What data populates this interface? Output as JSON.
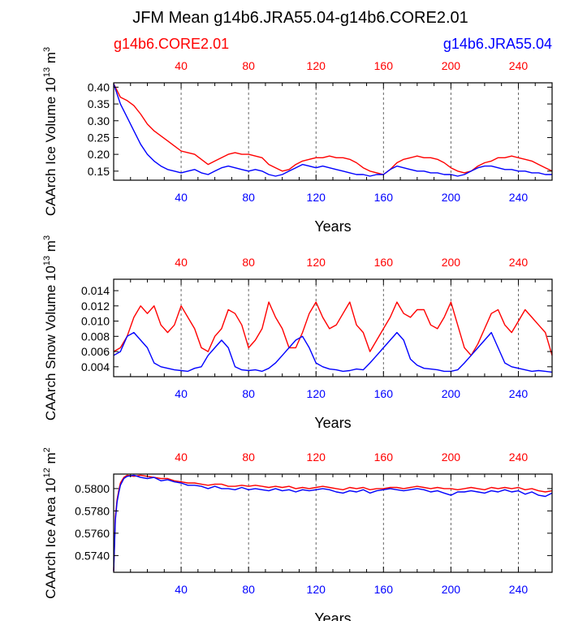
{
  "title": "JFM Mean g14b6.JRA55.04-g14b6.CORE2.01",
  "legend": {
    "left": {
      "label": "g14b6.CORE2.01",
      "color": "#ff0000"
    },
    "right": {
      "label": "g14b6.JRA55.04",
      "color": "#0000ff"
    }
  },
  "colors": {
    "core": "#ff0000",
    "jra": "#0000ff",
    "frame": "#000000",
    "grid": "#555555"
  },
  "chart_data": [
    {
      "type": "line",
      "id": "volume",
      "ylabel_main": "CAArch Ice Volume 10",
      "ylabel_exp": "13",
      "ylabel_unit": "m",
      "ylabel_unit_exp": "3",
      "xlabel": "Years",
      "xlim": [
        0,
        260
      ],
      "ylim": [
        0.123,
        0.413
      ],
      "yticks": [
        0.15,
        0.2,
        0.25,
        0.3,
        0.35,
        0.4
      ],
      "ytick_labels": [
        "0.15",
        "0.20",
        "0.25",
        "0.30",
        "0.35",
        "0.40"
      ],
      "xticks": [
        40,
        80,
        120,
        160,
        200,
        240
      ],
      "xtick_labels": [
        "40",
        "80",
        "120",
        "160",
        "200",
        "240"
      ],
      "top_xtick_labels": [
        "40",
        "80",
        "120",
        "160",
        "200",
        "240"
      ],
      "series": [
        {
          "name": "g14b6.CORE2.01",
          "color": "#ff0000",
          "x": [
            0,
            4,
            8,
            12,
            16,
            20,
            24,
            28,
            32,
            36,
            40,
            44,
            48,
            52,
            56,
            60,
            64,
            68,
            72,
            76,
            80,
            84,
            88,
            92,
            96,
            100,
            104,
            108,
            112,
            116,
            120,
            124,
            128,
            132,
            136,
            140,
            144,
            148,
            152,
            156,
            160,
            164,
            168,
            172,
            176,
            180,
            184,
            188,
            192,
            196,
            200,
            204,
            208,
            212,
            216,
            220,
            224,
            228,
            232,
            236,
            240,
            244,
            248,
            252,
            256,
            260
          ],
          "y": [
            0.41,
            0.37,
            0.36,
            0.345,
            0.32,
            0.29,
            0.27,
            0.255,
            0.24,
            0.225,
            0.21,
            0.205,
            0.2,
            0.185,
            0.17,
            0.18,
            0.19,
            0.2,
            0.205,
            0.2,
            0.2,
            0.195,
            0.19,
            0.17,
            0.16,
            0.15,
            0.155,
            0.17,
            0.18,
            0.185,
            0.19,
            0.19,
            0.195,
            0.19,
            0.19,
            0.185,
            0.175,
            0.16,
            0.15,
            0.145,
            0.14,
            0.155,
            0.175,
            0.185,
            0.19,
            0.195,
            0.19,
            0.19,
            0.185,
            0.175,
            0.16,
            0.15,
            0.145,
            0.15,
            0.165,
            0.175,
            0.18,
            0.19,
            0.19,
            0.195,
            0.19,
            0.185,
            0.18,
            0.17,
            0.16,
            0.15
          ]
        },
        {
          "name": "g14b6.JRA55.04",
          "color": "#0000ff",
          "x": [
            0,
            4,
            8,
            12,
            16,
            20,
            24,
            28,
            32,
            36,
            40,
            44,
            48,
            52,
            56,
            60,
            64,
            68,
            72,
            76,
            80,
            84,
            88,
            92,
            96,
            100,
            104,
            108,
            112,
            116,
            120,
            124,
            128,
            132,
            136,
            140,
            144,
            148,
            152,
            156,
            160,
            164,
            168,
            172,
            176,
            180,
            184,
            188,
            192,
            196,
            200,
            204,
            208,
            212,
            216,
            220,
            224,
            228,
            232,
            236,
            240,
            244,
            248,
            252,
            256,
            260
          ],
          "y": [
            0.41,
            0.35,
            0.31,
            0.27,
            0.23,
            0.2,
            0.18,
            0.165,
            0.155,
            0.15,
            0.145,
            0.15,
            0.155,
            0.145,
            0.14,
            0.15,
            0.16,
            0.165,
            0.16,
            0.155,
            0.15,
            0.155,
            0.15,
            0.14,
            0.135,
            0.14,
            0.15,
            0.16,
            0.17,
            0.165,
            0.16,
            0.165,
            0.16,
            0.155,
            0.15,
            0.145,
            0.14,
            0.14,
            0.135,
            0.14,
            0.14,
            0.155,
            0.165,
            0.16,
            0.155,
            0.15,
            0.15,
            0.145,
            0.145,
            0.14,
            0.14,
            0.135,
            0.14,
            0.15,
            0.16,
            0.165,
            0.165,
            0.16,
            0.155,
            0.155,
            0.15,
            0.15,
            0.145,
            0.145,
            0.14,
            0.14
          ]
        }
      ]
    },
    {
      "type": "line",
      "id": "snow",
      "ylabel_main": "CAArch Snow Volume 10",
      "ylabel_exp": "13",
      "ylabel_unit": "m",
      "ylabel_unit_exp": "3",
      "xlabel": "Years",
      "xlim": [
        0,
        260
      ],
      "ylim": [
        0.0027,
        0.0155
      ],
      "yticks": [
        0.004,
        0.006,
        0.008,
        0.01,
        0.012,
        0.014
      ],
      "ytick_labels": [
        "0.004",
        "0.006",
        "0.008",
        "0.010",
        "0.012",
        "0.014"
      ],
      "xticks": [
        40,
        80,
        120,
        160,
        200,
        240
      ],
      "xtick_labels": [
        "40",
        "80",
        "120",
        "160",
        "200",
        "240"
      ],
      "top_xtick_labels": [
        "40",
        "80",
        "120",
        "160",
        "200",
        "240"
      ],
      "series": [
        {
          "name": "g14b6.CORE2.01",
          "color": "#ff0000",
          "x": [
            0,
            4,
            8,
            12,
            16,
            20,
            24,
            28,
            32,
            36,
            40,
            44,
            48,
            52,
            56,
            60,
            64,
            68,
            72,
            76,
            80,
            84,
            88,
            92,
            96,
            100,
            104,
            108,
            112,
            116,
            120,
            124,
            128,
            132,
            136,
            140,
            144,
            148,
            152,
            156,
            160,
            164,
            168,
            172,
            176,
            180,
            184,
            188,
            192,
            196,
            200,
            204,
            208,
            212,
            216,
            220,
            224,
            228,
            232,
            236,
            240,
            244,
            248,
            252,
            256,
            260
          ],
          "y": [
            0.006,
            0.0065,
            0.008,
            0.0105,
            0.012,
            0.011,
            0.012,
            0.0095,
            0.0085,
            0.0095,
            0.012,
            0.0105,
            0.009,
            0.0065,
            0.006,
            0.008,
            0.009,
            0.0115,
            0.011,
            0.0095,
            0.0065,
            0.0075,
            0.009,
            0.0125,
            0.0105,
            0.009,
            0.0065,
            0.0065,
            0.0085,
            0.011,
            0.0125,
            0.0105,
            0.009,
            0.0095,
            0.011,
            0.0125,
            0.0095,
            0.0085,
            0.006,
            0.0075,
            0.009,
            0.0105,
            0.0125,
            0.011,
            0.0105,
            0.0115,
            0.0115,
            0.0095,
            0.009,
            0.0105,
            0.0125,
            0.0095,
            0.0065,
            0.0055,
            0.007,
            0.009,
            0.011,
            0.0115,
            0.0095,
            0.0085,
            0.01,
            0.0115,
            0.0105,
            0.0095,
            0.0085,
            0.0055
          ]
        },
        {
          "name": "g14b6.JRA55.04",
          "color": "#0000ff",
          "x": [
            0,
            4,
            8,
            12,
            16,
            20,
            24,
            28,
            32,
            36,
            40,
            44,
            48,
            52,
            56,
            60,
            64,
            68,
            72,
            76,
            80,
            84,
            88,
            92,
            96,
            100,
            104,
            108,
            112,
            116,
            120,
            124,
            128,
            132,
            136,
            140,
            144,
            148,
            152,
            156,
            160,
            164,
            168,
            172,
            176,
            180,
            184,
            188,
            192,
            196,
            200,
            204,
            208,
            212,
            216,
            220,
            224,
            228,
            232,
            236,
            240,
            244,
            248,
            252,
            256,
            260
          ],
          "y": [
            0.0055,
            0.006,
            0.008,
            0.0085,
            0.0075,
            0.0065,
            0.0045,
            0.004,
            0.0038,
            0.0036,
            0.0035,
            0.0034,
            0.0038,
            0.004,
            0.0055,
            0.0065,
            0.0075,
            0.0065,
            0.004,
            0.0036,
            0.0035,
            0.0036,
            0.0034,
            0.0038,
            0.0045,
            0.0055,
            0.0065,
            0.0075,
            0.008,
            0.0065,
            0.0045,
            0.004,
            0.0037,
            0.0036,
            0.0034,
            0.0035,
            0.0037,
            0.0036,
            0.0045,
            0.0055,
            0.0065,
            0.0075,
            0.0085,
            0.0075,
            0.005,
            0.0042,
            0.0038,
            0.0037,
            0.0036,
            0.0034,
            0.0034,
            0.0036,
            0.0045,
            0.0055,
            0.0065,
            0.0075,
            0.0085,
            0.0065,
            0.0045,
            0.004,
            0.0038,
            0.0036,
            0.0034,
            0.0035,
            0.0034,
            0.0033
          ]
        }
      ]
    },
    {
      "type": "line",
      "id": "area",
      "ylabel_main": "CAArch Ice Area 10",
      "ylabel_exp": "12",
      "ylabel_unit": "m",
      "ylabel_unit_exp": "2",
      "xlabel": "Years",
      "xlim": [
        0,
        260
      ],
      "ylim": [
        0.5725,
        0.5813
      ],
      "yticks": [
        0.574,
        0.576,
        0.578,
        0.58
      ],
      "ytick_labels": [
        "0.5740",
        "0.5760",
        "0.5780",
        "0.5800"
      ],
      "xticks": [
        40,
        80,
        120,
        160,
        200,
        240
      ],
      "xtick_labels": [
        "40",
        "80",
        "120",
        "160",
        "200",
        "240"
      ],
      "top_xtick_labels": [
        "40",
        "80",
        "120",
        "160",
        "200",
        "240"
      ],
      "series": [
        {
          "name": "g14b6.CORE2.01",
          "color": "#ff0000",
          "x": [
            0,
            1,
            2,
            3,
            4,
            6,
            8,
            12,
            16,
            20,
            24,
            28,
            32,
            36,
            40,
            44,
            48,
            52,
            56,
            60,
            64,
            68,
            72,
            76,
            80,
            84,
            88,
            92,
            96,
            100,
            104,
            108,
            112,
            116,
            120,
            124,
            128,
            132,
            136,
            140,
            144,
            148,
            152,
            156,
            160,
            164,
            168,
            172,
            176,
            180,
            184,
            188,
            192,
            196,
            200,
            204,
            208,
            212,
            216,
            220,
            224,
            228,
            232,
            236,
            240,
            244,
            248,
            252,
            256,
            260
          ],
          "y": [
            0.5726,
            0.5775,
            0.579,
            0.5798,
            0.5805,
            0.581,
            0.5812,
            0.5811,
            0.5812,
            0.5811,
            0.581,
            0.5809,
            0.5809,
            0.5807,
            0.5806,
            0.5805,
            0.5805,
            0.5804,
            0.5803,
            0.5804,
            0.5804,
            0.5802,
            0.5802,
            0.5803,
            0.5802,
            0.5803,
            0.5802,
            0.5801,
            0.5802,
            0.5801,
            0.5802,
            0.58,
            0.5801,
            0.58,
            0.5801,
            0.5802,
            0.5801,
            0.58,
            0.5799,
            0.5801,
            0.58,
            0.5801,
            0.5799,
            0.58,
            0.58,
            0.5801,
            0.5801,
            0.58,
            0.5801,
            0.5802,
            0.5801,
            0.58,
            0.5801,
            0.58,
            0.58,
            0.5799,
            0.58,
            0.5801,
            0.58,
            0.5799,
            0.5801,
            0.58,
            0.5801,
            0.58,
            0.5801,
            0.5799,
            0.58,
            0.5798,
            0.5797,
            0.5798
          ]
        },
        {
          "name": "g14b6.JRA55.04",
          "color": "#0000ff",
          "x": [
            0,
            1,
            2,
            3,
            4,
            6,
            8,
            12,
            16,
            20,
            24,
            28,
            32,
            36,
            40,
            44,
            48,
            52,
            56,
            60,
            64,
            68,
            72,
            76,
            80,
            84,
            88,
            92,
            96,
            100,
            104,
            108,
            112,
            116,
            120,
            124,
            128,
            132,
            136,
            140,
            144,
            148,
            152,
            156,
            160,
            164,
            168,
            172,
            176,
            180,
            184,
            188,
            192,
            196,
            200,
            204,
            208,
            212,
            216,
            220,
            224,
            228,
            232,
            236,
            240,
            244,
            248,
            252,
            256,
            260
          ],
          "y": [
            0.5726,
            0.5772,
            0.5788,
            0.5796,
            0.5803,
            0.5809,
            0.5811,
            0.5812,
            0.581,
            0.5809,
            0.581,
            0.5807,
            0.5808,
            0.5806,
            0.5805,
            0.5803,
            0.5803,
            0.5802,
            0.58,
            0.5802,
            0.58,
            0.58,
            0.5799,
            0.5801,
            0.5799,
            0.58,
            0.5799,
            0.5798,
            0.58,
            0.5798,
            0.5799,
            0.5797,
            0.5799,
            0.5798,
            0.5799,
            0.58,
            0.5799,
            0.5797,
            0.5796,
            0.5798,
            0.5797,
            0.5799,
            0.5796,
            0.5798,
            0.5799,
            0.58,
            0.5799,
            0.5798,
            0.5799,
            0.58,
            0.5799,
            0.5797,
            0.5798,
            0.5796,
            0.5794,
            0.5797,
            0.5797,
            0.5798,
            0.5797,
            0.5796,
            0.5798,
            0.5797,
            0.5799,
            0.5797,
            0.5798,
            0.5795,
            0.5797,
            0.5794,
            0.5793,
            0.5796
          ]
        }
      ]
    }
  ]
}
